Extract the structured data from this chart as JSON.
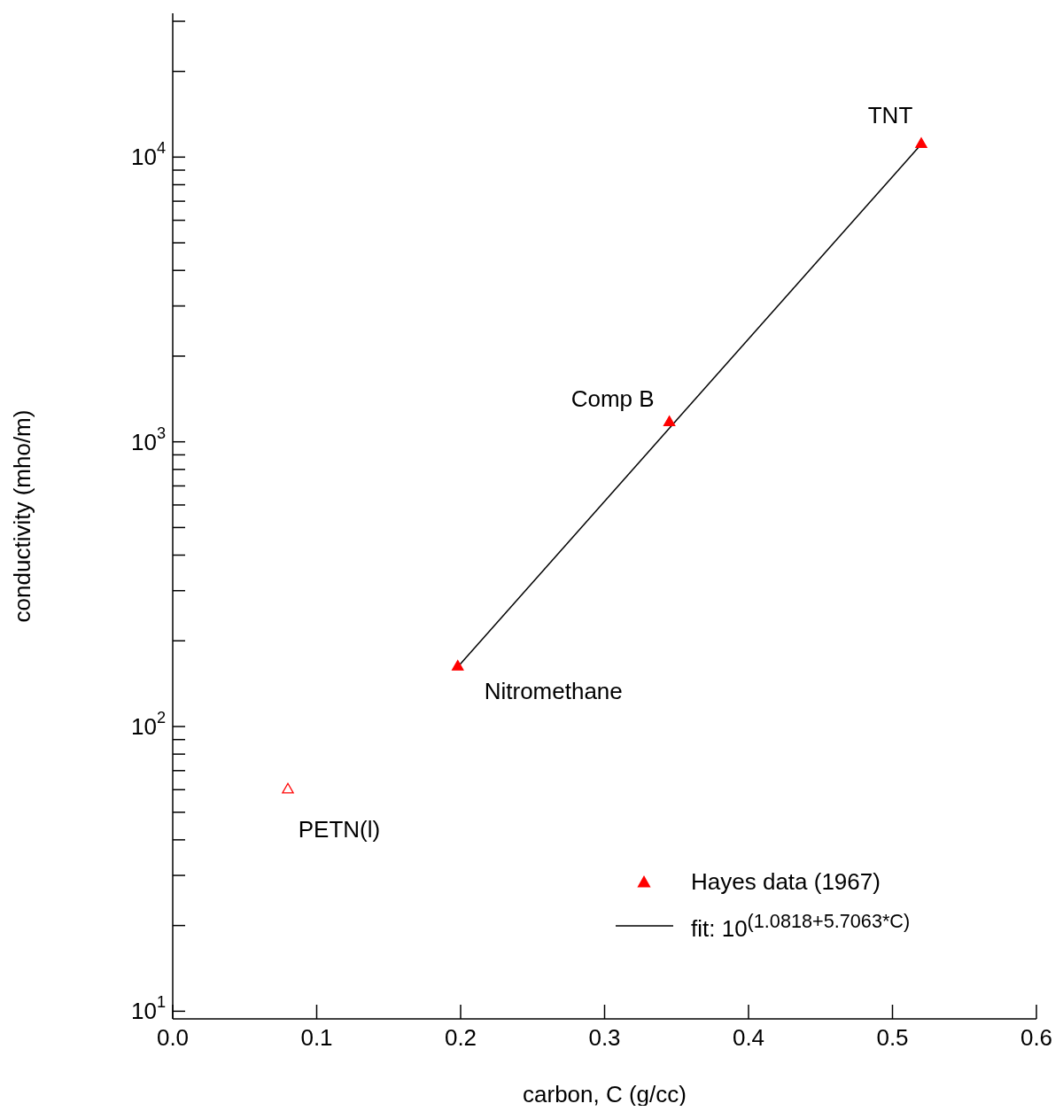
{
  "chart_data": {
    "type": "scatter",
    "xlabel": "carbon, C (g/cc)",
    "ylabel": "conductivity (mho/m)",
    "xlim": [
      0,
      0.6
    ],
    "xticks": [
      {
        "value": 0,
        "label": "0.0"
      },
      0.1,
      0.2,
      0.3,
      0.4,
      0.5,
      0.6
    ],
    "ylim": [
      9.4,
      32000
    ],
    "log": "y",
    "yticks": [
      {
        "value": 10,
        "label": "10$^{1}$"
      },
      {
        "value": 20,
        "label": null
      },
      {
        "value": 30,
        "label": null
      },
      {
        "value": 40,
        "label": null
      },
      {
        "value": 50,
        "label": null
      },
      {
        "value": 60,
        "label": null
      },
      {
        "value": 70,
        "label": null
      },
      {
        "value": 80,
        "label": null
      },
      {
        "value": 90,
        "label": null
      },
      {
        "value": 100,
        "label": "10$^{2}$"
      },
      {
        "value": 200,
        "label": null
      },
      {
        "value": 300,
        "label": null
      },
      {
        "value": 400,
        "label": null
      },
      {
        "value": 500,
        "label": null
      },
      {
        "value": 600,
        "label": null
      },
      {
        "value": 700,
        "label": null
      },
      {
        "value": 800,
        "label": null
      },
      {
        "value": 900,
        "label": null
      },
      {
        "value": 1000,
        "label": "10$^{3}$"
      },
      {
        "value": 2000,
        "label": null
      },
      {
        "value": 3000,
        "label": null
      },
      {
        "value": 4000,
        "label": null
      },
      {
        "value": 5000,
        "label": null
      },
      {
        "value": 6000,
        "label": null
      },
      {
        "value": 7000,
        "label": null
      },
      {
        "value": 8000,
        "label": null
      },
      {
        "value": 9000,
        "label": null
      },
      {
        "value": 10000,
        "label": "10$^{4}$"
      },
      {
        "value": 20000,
        "label": null
      },
      {
        "value": 30000,
        "label": null
      }
    ],
    "grid": false,
    "legend": "bottom right",
    "series": [
      {
        "name": "Hayes data (1967)",
        "type": "scatter",
        "marker": "triangle",
        "color": "#ff0000",
        "x": [
          0.198,
          0.345,
          0.52
        ],
        "values": [
          162,
          1170,
          11100
        ]
      },
      {
        "name": "fit: 10$^{(1.0818+5.7063*C)}$",
        "type": "line",
        "color": "#000000",
        "x": [
          0.198,
          0.52
        ],
        "values": [
          162,
          11100
        ]
      },
      {
        "type": "scatter",
        "marker": "triangle",
        "color": "#ff0000",
        "x": [
          0.08
        ],
        "values": [
          60
        ]
      }
    ],
    "annotations": [
      {
        "text": "TNT",
        "x": 0.52,
        "y": 11100
      },
      {
        "text": "Comp B",
        "x": 0.345,
        "y": 1170
      },
      {
        "text": "Nitromethane",
        "x": 0.198,
        "y": 162
      },
      {
        "text": "PETN(l)",
        "x": 0.08,
        "y": 60
      }
    ]
  }
}
